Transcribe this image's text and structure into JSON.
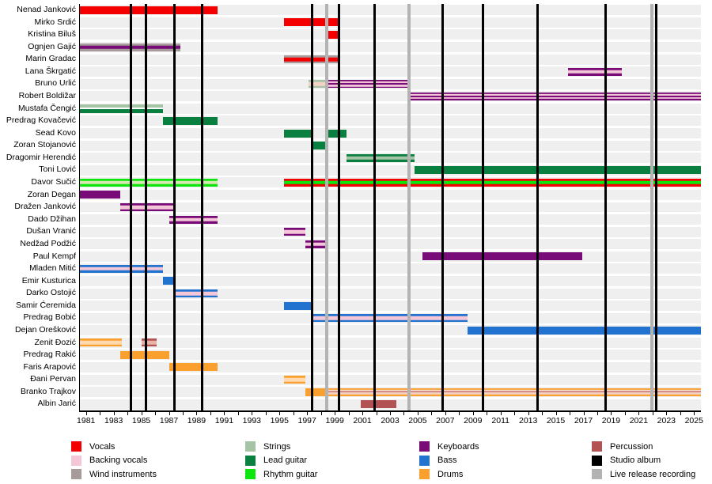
{
  "chart_data": {
    "type": "bar",
    "variant": "band-member-timeline",
    "x_axis": {
      "domain_start": 1980.5,
      "domain_end": 2025.5,
      "minor_tick_interval": 1,
      "label_years": [
        "1981",
        "1983",
        "1985",
        "1987",
        "1989",
        "1991",
        "1993",
        "1995",
        "1997",
        "1999",
        "2001",
        "2003",
        "2005",
        "2007",
        "2009",
        "2011",
        "2013",
        "2015",
        "2017",
        "2019",
        "2021",
        "2023",
        "2025"
      ]
    },
    "palette": {
      "vocals": "#f40000",
      "backing_vocals": "#f3c7d7",
      "wind_instruments": "#a79b9b",
      "strings": "#a5c4a5",
      "lead_guitar": "#0a8040",
      "rhythm_guitar": "#0ce60c",
      "keyboards": "#780b78",
      "bass": "#2173cf",
      "drums": "#f9a02f",
      "percussion": "#b35252",
      "studio_album": "#000000",
      "live_release": "#b3b3b3",
      "pale_orange": "#ffd9af",
      "pale_green": "#d4e7ae",
      "pale_pink": "#f5d3c4",
      "pale_red": "#eab3a9",
      "white": "#ffffff"
    },
    "members": [
      {
        "name": "Nenad Janković",
        "bars": [
          {
            "start": 1980.5,
            "end": 1990.5,
            "layers": [
              "vocals"
            ]
          }
        ]
      },
      {
        "name": "Mirko Srdić",
        "bars": [
          {
            "start": 1995.3,
            "end": 1999.4,
            "layers": [
              "vocals"
            ]
          }
        ]
      },
      {
        "name": "Kristina Biluš",
        "bars": [
          {
            "start": 1998.4,
            "end": 1999.4,
            "layers": [
              "vocals"
            ]
          }
        ]
      },
      {
        "name": "Ognjen Gajić",
        "bars": [
          {
            "start": 1980.5,
            "end": 1987.85,
            "layers": [
              "wind_instruments",
              "keyboards"
            ]
          }
        ]
      },
      {
        "name": "Marin Gradac",
        "bars": [
          {
            "start": 1995.3,
            "end": 1999.4,
            "layers": [
              "wind_instruments",
              "vocals"
            ]
          }
        ]
      },
      {
        "name": "Lana Škrgatić",
        "bars": [
          {
            "start": 2015.9,
            "end": 2019.8,
            "layers": [
              "keyboards",
              "backing_vocals"
            ]
          }
        ]
      },
      {
        "name": "Bruno Urlić",
        "bars": [
          {
            "start": 1997.1,
            "end": 1998.3,
            "layers": [
              "strings",
              "pale_pink"
            ]
          },
          {
            "start": 1998.3,
            "end": 2004.4,
            "layers": [
              "keyboards",
              "backing_vocals",
              "keyboards"
            ]
          }
        ]
      },
      {
        "name": "Robert Boldižar",
        "bars": [
          {
            "start": 2004.4,
            "end": 2025.5,
            "layers": [
              "keyboards",
              "backing_vocals",
              "keyboards"
            ]
          }
        ]
      },
      {
        "name": "Mustafa Čengić",
        "bars": [
          {
            "start": 1980.5,
            "end": 1986.55,
            "split": true,
            "layers": [
              "strings",
              "white",
              "lead_guitar"
            ]
          }
        ]
      },
      {
        "name": "Predrag Kovačević",
        "bars": [
          {
            "start": 1986.55,
            "end": 1990.5,
            "layers": [
              "lead_guitar"
            ]
          }
        ]
      },
      {
        "name": "Sead Kovo",
        "bars": [
          {
            "start": 1995.3,
            "end": 1997.35,
            "layers": [
              "lead_guitar"
            ]
          },
          {
            "start": 1998.4,
            "end": 1999.85,
            "layers": [
              "lead_guitar"
            ]
          }
        ]
      },
      {
        "name": "Zoran Stojanović",
        "bars": [
          {
            "start": 1997.35,
            "end": 1998.4,
            "layers": [
              "lead_guitar"
            ]
          }
        ]
      },
      {
        "name": "Dragomir Herendić",
        "bars": [
          {
            "start": 1999.85,
            "end": 2004.75,
            "layers": [
              "lead_guitar",
              "strings"
            ]
          }
        ]
      },
      {
        "name": "Toni Lović",
        "bars": [
          {
            "start": 2004.75,
            "end": 2025.5,
            "layers": [
              "lead_guitar"
            ]
          }
        ]
      },
      {
        "name": "Davor Sučić",
        "bars": [
          {
            "start": 1980.5,
            "end": 1990.5,
            "layers": [
              "rhythm_guitar",
              "pale_green"
            ]
          },
          {
            "start": 1995.3,
            "end": 2025.5,
            "layers": [
              "vocals",
              "rhythm_guitar"
            ]
          }
        ]
      },
      {
        "name": "Zoran Degan",
        "bars": [
          {
            "start": 1980.5,
            "end": 1983.5,
            "layers": [
              "keyboards"
            ]
          }
        ]
      },
      {
        "name": "Dražen Janković",
        "bars": [
          {
            "start": 1983.5,
            "end": 1987.5,
            "layers": [
              "keyboards",
              "backing_vocals"
            ]
          }
        ]
      },
      {
        "name": "Dado Džihan",
        "bars": [
          {
            "start": 1987.0,
            "end": 1990.5,
            "layers": [
              "keyboards",
              "backing_vocals"
            ]
          }
        ]
      },
      {
        "name": "Dušan Vranić",
        "bars": [
          {
            "start": 1995.3,
            "end": 1996.9,
            "layers": [
              "keyboards",
              "backing_vocals"
            ]
          }
        ]
      },
      {
        "name": "Nedžad Podžić",
        "bars": [
          {
            "start": 1996.9,
            "end": 1998.4,
            "layers": [
              "keyboards",
              "backing_vocals"
            ]
          }
        ]
      },
      {
        "name": "Paul Kempf",
        "bars": [
          {
            "start": 2005.35,
            "end": 2016.9,
            "layers": [
              "keyboards"
            ]
          }
        ]
      },
      {
        "name": "Mladen Mitić",
        "bars": [
          {
            "start": 1980.5,
            "end": 1986.55,
            "layers": [
              "bass",
              "backing_vocals"
            ]
          }
        ]
      },
      {
        "name": "Emir Kusturica",
        "bars": [
          {
            "start": 1986.55,
            "end": 1987.5,
            "layers": [
              "bass"
            ]
          }
        ]
      },
      {
        "name": "Darko Ostojić",
        "bars": [
          {
            "start": 1987.5,
            "end": 1990.5,
            "layers": [
              "bass",
              "backing_vocals"
            ]
          }
        ]
      },
      {
        "name": "Samir Ćeremida",
        "bars": [
          {
            "start": 1995.3,
            "end": 1997.4,
            "layers": [
              "bass"
            ]
          }
        ]
      },
      {
        "name": "Predrag Bobić",
        "bars": [
          {
            "start": 1997.4,
            "end": 2008.6,
            "layers": [
              "bass",
              "backing_vocals"
            ]
          }
        ]
      },
      {
        "name": "Dejan Orešković",
        "bars": [
          {
            "start": 2008.6,
            "end": 2025.5,
            "layers": [
              "bass"
            ]
          }
        ]
      },
      {
        "name": "Zenit Đozić",
        "bars": [
          {
            "start": 1980.5,
            "end": 1983.6,
            "layers": [
              "drums",
              "pale_orange"
            ]
          },
          {
            "start": 1985.0,
            "end": 1986.1,
            "layers": [
              "percussion",
              "pale_red"
            ]
          }
        ]
      },
      {
        "name": "Predrag Rakić",
        "bars": [
          {
            "start": 1983.5,
            "end": 1987.0,
            "layers": [
              "drums"
            ]
          }
        ]
      },
      {
        "name": "Faris Arapović",
        "bars": [
          {
            "start": 1987.0,
            "end": 1990.5,
            "layers": [
              "drums"
            ]
          }
        ]
      },
      {
        "name": "Đani Pervan",
        "bars": [
          {
            "start": 1995.3,
            "end": 1996.9,
            "layers": [
              "drums",
              "pale_orange"
            ]
          }
        ]
      },
      {
        "name": "Branko Trajkov",
        "bars": [
          {
            "start": 1996.9,
            "end": 1998.4,
            "layers": [
              "drums"
            ]
          },
          {
            "start": 1998.4,
            "end": 2025.5,
            "layers": [
              "drums",
              "pale_pink",
              "percussion"
            ]
          }
        ]
      },
      {
        "name": "Albin Jarić",
        "bars": [
          {
            "start": 2000.9,
            "end": 2003.45,
            "layers": [
              "percussion"
            ]
          }
        ]
      }
    ],
    "studio_albums": [
      1984.25,
      1985.35,
      1987.4,
      1989.4,
      1997.35,
      1999.3,
      2001.9,
      2006.8,
      2009.75,
      2013.7,
      2018.6,
      2022.25
    ],
    "live_release_recordings": [
      1998.4,
      2004.35,
      2021.95
    ],
    "legend_columns": [
      [
        {
          "label": "Vocals",
          "color": "vocals"
        },
        {
          "label": "Backing vocals",
          "color": "backing_vocals"
        },
        {
          "label": "Wind instruments",
          "color": "wind_instruments"
        }
      ],
      [
        {
          "label": "Strings",
          "color": "strings"
        },
        {
          "label": "Lead guitar",
          "color": "lead_guitar"
        },
        {
          "label": "Rhythm guitar",
          "color": "rhythm_guitar"
        }
      ],
      [
        {
          "label": "Keyboards",
          "color": "keyboards"
        },
        {
          "label": "Bass",
          "color": "bass"
        },
        {
          "label": "Drums",
          "color": "drums"
        }
      ],
      [
        {
          "label": "Percussion",
          "color": "percussion"
        },
        {
          "label": "Studio album",
          "color": "studio_album"
        },
        {
          "label": "Live release recording",
          "color": "live_release"
        }
      ]
    ]
  }
}
